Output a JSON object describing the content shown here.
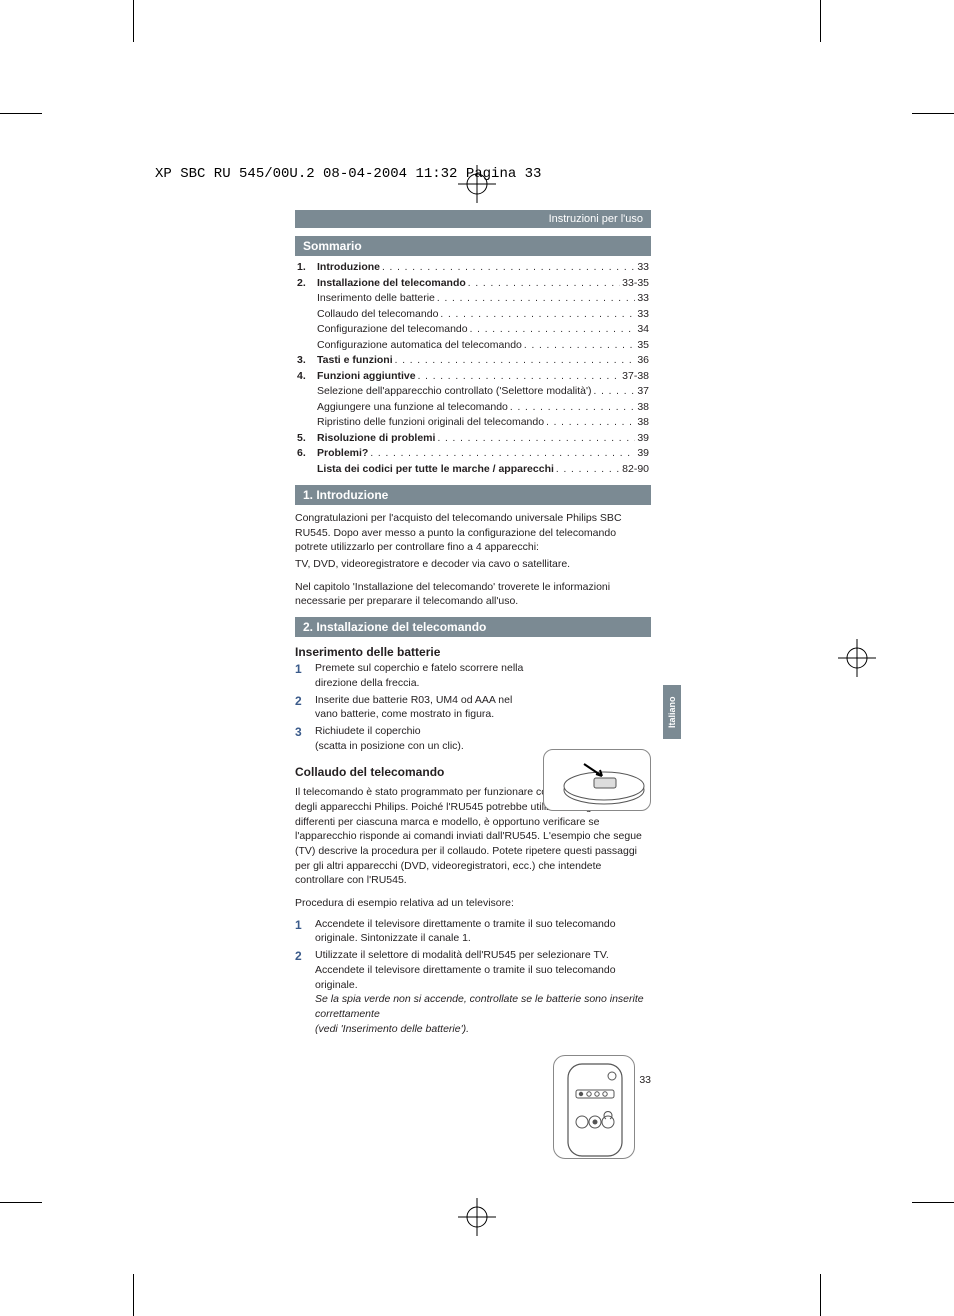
{
  "header_line": "XP SBC RU 545/00U.2  08-04-2004  11:32  Pagina 33",
  "ribbon": "Instruzioni per l'uso",
  "side_tab": "Italiano",
  "sections": {
    "sommario": "Sommario",
    "introduzione": "1. Introduzione",
    "installazione": "2. Installazione del telecomando"
  },
  "toc": [
    {
      "n": "1.",
      "bold": true,
      "label": "Introduzione",
      "page": "33"
    },
    {
      "n": "2.",
      "bold": true,
      "label": "Installazione del telecomando",
      "page": "33-35"
    },
    {
      "n": "",
      "bold": false,
      "label": "Inserimento delle batterie",
      "page": "33",
      "indent": true
    },
    {
      "n": "",
      "bold": false,
      "label": "Collaudo del telecomando",
      "page": "33",
      "indent": true
    },
    {
      "n": "",
      "bold": false,
      "label": "Configurazione del telecomando",
      "page": "34",
      "indent": true
    },
    {
      "n": "",
      "bold": false,
      "label": "Configurazione automatica del telecomando",
      "page": "35",
      "indent": true
    },
    {
      "n": "3.",
      "bold": true,
      "label": "Tasti e funzioni",
      "page": "36"
    },
    {
      "n": "4.",
      "bold": true,
      "label": "Funzioni aggiuntive",
      "page": "37-38"
    },
    {
      "n": "",
      "bold": false,
      "label": "Selezione dell'apparecchio controllato ('Selettore modalità')",
      "page": "37",
      "indent": true
    },
    {
      "n": "",
      "bold": false,
      "label": "Aggiungere una funzione al telecomando",
      "page": "38",
      "indent": true
    },
    {
      "n": "",
      "bold": false,
      "label": "Ripristino delle funzioni originali del telecomando",
      "page": "38",
      "indent": true
    },
    {
      "n": "5.",
      "bold": true,
      "label": "Risoluzione di problemi",
      "page": "39"
    },
    {
      "n": "6.",
      "bold": true,
      "label": "Problemi?",
      "page": "39"
    },
    {
      "n": "",
      "bold": true,
      "label": "Lista dei codici per tutte le marche / apparecchi",
      "page": "82-90",
      "indent": true
    }
  ],
  "intro": {
    "p1": "Congratulazioni per l'acquisto del telecomando universale Philips SBC RU545. Dopo aver messo a punto la configurazione del telecomando potrete utilizzarlo per controllare fino a 4 apparecchi:",
    "p2": "TV, DVD, videoregistratore e decoder via cavo o satellitare.",
    "p3": "Nel capitolo 'Installazione del telecomando' troverete le informazioni necessarie per preparare il telecomando all'uso."
  },
  "batterie": {
    "head": "Inserimento delle batterie",
    "s1": "Premete sul coperchio e fatelo scorrere nella direzione della freccia.",
    "s2": "Inserite due batterie R03, UM4 od AAA nel vano batterie, come mostrato in figura.",
    "s3a": "Richiudete il coperchio",
    "s3b": "(scatta in posizione con un clic)."
  },
  "collaudo": {
    "head": "Collaudo del telecomando",
    "p1": "Il telecomando è stato programmato per funzionare con la maggioranza degli apparecchi Philips. Poiché l'RU545 potrebbe utilizzare segnali differenti per ciascuna marca e modello, è opportuno verificare se l'apparecchio risponde ai comandi inviati dall'RU545. L'esempio che segue (TV) descrive la procedura per il collaudo. Potete ripetere questi passaggi per gli altri apparecchi (DVD, videoregistratori, ecc.) che intendete controllare con l'RU545.",
    "p2": "Procedura di esempio relativa ad un televisore:",
    "s1": "Accendete il televisore direttamente o tramite il suo telecomando originale. Sintonizzate il canale 1.",
    "s2": "Utilizzate il selettore di modalità dell'RU545 per selezionare TV. Accendete il televisore direttamente o tramite il suo telecomando originale.",
    "s2i": "Se la spia verde non si accende, controllate se le batterie sono inserite correttamente",
    "s2j": "(vedi 'Inserimento delle batterie')."
  },
  "page_number": "33",
  "colors": {
    "bar": "#7b8a93",
    "stepnum": "#3a5a8a",
    "text": "#231f20"
  }
}
